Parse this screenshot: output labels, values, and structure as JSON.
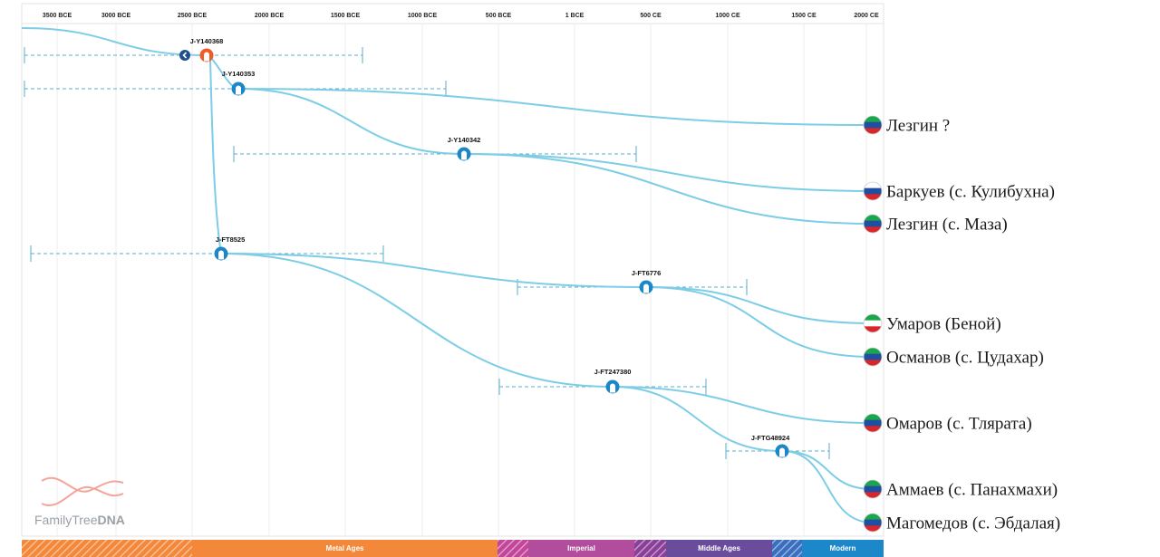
{
  "timeline": {
    "ticks": [
      "3500 BCE",
      "3000 BCE",
      "2500 BCE",
      "2000 BCE",
      "1500 BCE",
      "1000 BCE",
      "500 BCE",
      "1 BCE",
      "500 CE",
      "1000 CE",
      "1500 CE",
      "2000 CE"
    ],
    "eras": [
      {
        "label": "",
        "color": "#f4883a",
        "hatched": true
      },
      {
        "label": "Metal Ages",
        "color": "#f4883a",
        "hatched": false
      },
      {
        "label": "",
        "color": "#c2479a",
        "hatched": true
      },
      {
        "label": "Imperial",
        "color": "#b24c9c",
        "hatched": false
      },
      {
        "label": "",
        "color": "#8a3f98",
        "hatched": true
      },
      {
        "label": "Middle Ages",
        "color": "#6a4c9c",
        "hatched": false
      },
      {
        "label": "",
        "color": "#3a6fc0",
        "hatched": true
      },
      {
        "label": "Modern",
        "color": "#1c87c9",
        "hatched": false
      }
    ]
  },
  "nodes": [
    {
      "id": "J-Y140368",
      "color": "#f05a28"
    },
    {
      "id": "J-Y140353",
      "color": "#1b86c8"
    },
    {
      "id": "J-Y140342",
      "color": "#1b86c8"
    },
    {
      "id": "J-FT8525",
      "color": "#1b86c8"
    },
    {
      "id": "J-FT6776",
      "color": "#1b86c8"
    },
    {
      "id": "J-FT247380",
      "color": "#1b86c8"
    },
    {
      "id": "J-FTG48924",
      "color": "#1b86c8"
    }
  ],
  "leaves": [
    {
      "label": "Лезгин ?",
      "flag": "dagestan-flag-icon"
    },
    {
      "label": "Баркуев (с. Кулибухна)",
      "flag": "russia-flag-icon"
    },
    {
      "label": "Лезгин (с. Маза)",
      "flag": "dagestan-flag-icon"
    },
    {
      "label": "Умаров (Беной)",
      "flag": "chechnya-flag-icon"
    },
    {
      "label": "Османов (с. Цудахар)",
      "flag": "dagestan-flag-icon"
    },
    {
      "label": "Омаров (с. Тлярата)",
      "flag": "dagestan-flag-icon"
    },
    {
      "label": "Аммаев (с. Панахмахи)",
      "flag": "dagestan-flag-icon"
    },
    {
      "label": "Магомедов (с. Эбдалая)",
      "flag": "dagestan-flag-icon"
    }
  ],
  "brand": {
    "text_light": "FamilyTree",
    "text_bold": "DNA"
  },
  "colors": {
    "branch": "#7dcde6",
    "dashed": "#5aaec8",
    "node": "#1b86c8",
    "root": "#f05a28",
    "collapse": "#1f4f8f"
  }
}
